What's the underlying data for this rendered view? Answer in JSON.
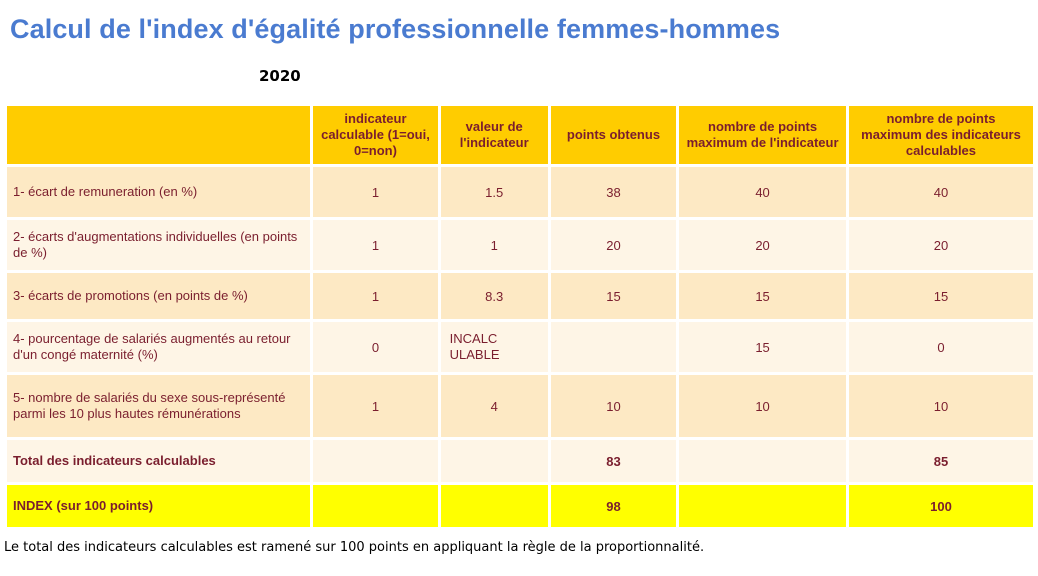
{
  "title": "Calcul de l'index d'égalité professionnelle femmes-hommes",
  "year": "2020",
  "headers": [
    "",
    "indicateur calculable (1=oui, 0=non)",
    "valeur de l'indicateur",
    "points obtenus",
    "nombre de points maximum de l'indicateur",
    "nombre de points maximum des indicateurs calculables"
  ],
  "rows": [
    {
      "label": "1- écart de remuneration (en %)",
      "calculable": "1",
      "valeur": "1.5",
      "points": "38",
      "max": "40",
      "max_calc": "40"
    },
    {
      "label": "2- écarts d'augmentations individuelles (en points de %)",
      "calculable": "1",
      "valeur": "1",
      "points": "20",
      "max": "20",
      "max_calc": "20"
    },
    {
      "label": "3- écarts de promotions (en points de %)",
      "calculable": "1",
      "valeur": "8.3",
      "points": "15",
      "max": "15",
      "max_calc": "15"
    },
    {
      "label": "4- pourcentage de salariés augmentés au retour d'un congé maternité (%)",
      "calculable": "0",
      "valeur": "INCALC ULABLE",
      "points": "",
      "max": "15",
      "max_calc": "0"
    },
    {
      "label": "5- nombre de salariés du sexe sous-représenté parmi les 10 plus hautes rémunérations",
      "calculable": "1",
      "valeur": "4",
      "points": "10",
      "max": "10",
      "max_calc": "10"
    }
  ],
  "total": {
    "label": "Total des indicateurs calculables",
    "points": "83",
    "max_calc": "85"
  },
  "index": {
    "label": "INDEX (sur 100 points)",
    "points": "98",
    "max_calc": "100"
  },
  "footnote": "Le total des indicateurs calculables est ramené sur 100 points en appliquant la règle de la proportionnalité."
}
